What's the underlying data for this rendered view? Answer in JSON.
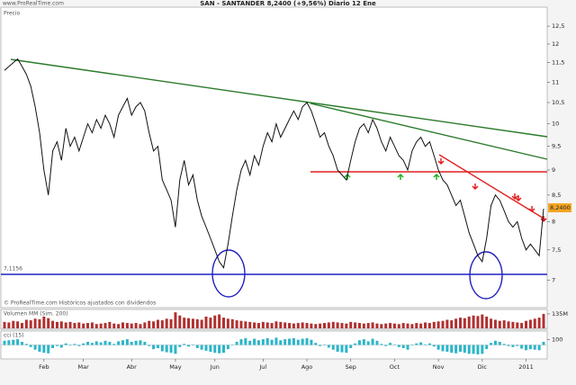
{
  "chart_data": [
    {
      "type": "line",
      "title": "SAN - SANTANDER   8,2400 (+9,56%)   Diario   12 Ene",
      "site": "www.ProRealTime.com",
      "panel_label": "Precio",
      "note": "© ProRealTime.com   Históricos ajustados con dividendos",
      "level_label": "7,1156",
      "last_label": "8,2400",
      "log_scale": true,
      "color": "#111111",
      "categories": [
        null,
        null,
        null,
        null,
        null,
        null,
        null,
        null,
        null,
        "Feb",
        null,
        null,
        null,
        null,
        null,
        null,
        null,
        null,
        "Mar",
        null,
        null,
        null,
        null,
        null,
        null,
        null,
        null,
        null,
        null,
        "Abr",
        null,
        null,
        null,
        null,
        null,
        null,
        null,
        null,
        null,
        "May",
        null,
        null,
        null,
        null,
        null,
        null,
        null,
        null,
        "Jun",
        null,
        null,
        null,
        null,
        null,
        null,
        null,
        null,
        null,
        null,
        "Jul",
        null,
        null,
        null,
        null,
        null,
        null,
        null,
        null,
        null,
        "Ago",
        null,
        null,
        null,
        null,
        null,
        null,
        null,
        null,
        null,
        "Sep",
        null,
        null,
        null,
        null,
        null,
        null,
        null,
        null,
        null,
        "Oct",
        null,
        null,
        null,
        null,
        null,
        null,
        null,
        null,
        null,
        "Nov",
        null,
        null,
        null,
        null,
        null,
        null,
        null,
        null,
        null,
        "Dic",
        null,
        null,
        null,
        null,
        null,
        null,
        null,
        null,
        null,
        "2011",
        null,
        null,
        null,
        null
      ],
      "values": [
        11.3,
        11.4,
        11.5,
        11.6,
        11.4,
        11.2,
        10.9,
        10.4,
        9.8,
        9.0,
        8.5,
        9.4,
        9.6,
        9.2,
        9.9,
        9.5,
        9.7,
        9.4,
        9.7,
        10.0,
        9.8,
        10.1,
        9.9,
        10.2,
        10.0,
        9.7,
        10.2,
        10.4,
        10.6,
        10.2,
        10.4,
        10.5,
        10.3,
        9.8,
        9.4,
        9.5,
        8.8,
        8.6,
        8.4,
        7.9,
        8.8,
        9.2,
        8.7,
        8.9,
        8.4,
        8.1,
        7.9,
        7.7,
        7.5,
        7.3,
        7.2,
        7.6,
        8.1,
        8.6,
        9.0,
        9.2,
        8.9,
        9.3,
        9.1,
        9.5,
        9.8,
        9.6,
        10.0,
        9.7,
        9.9,
        10.1,
        10.3,
        10.1,
        10.4,
        10.5,
        10.3,
        10.0,
        9.7,
        9.8,
        9.5,
        9.3,
        9.0,
        8.9,
        8.8,
        9.2,
        9.6,
        9.9,
        10.0,
        9.8,
        10.1,
        9.9,
        9.6,
        9.4,
        9.7,
        9.5,
        9.3,
        9.2,
        9.0,
        9.4,
        9.6,
        9.7,
        9.5,
        9.6,
        9.3,
        9.0,
        8.8,
        8.7,
        8.5,
        8.3,
        8.4,
        8.1,
        7.8,
        7.6,
        7.4,
        7.3,
        7.7,
        8.3,
        8.5,
        8.4,
        8.2,
        8.0,
        7.9,
        8.0,
        7.7,
        7.5,
        7.6,
        7.5,
        7.4,
        8.24
      ],
      "ylim": [
        6.6,
        13.0
      ],
      "yticks": [
        7,
        {
          "value": 7.5,
          "label": "7,5"
        },
        8,
        {
          "value": 8.5,
          "label": "8,5"
        },
        9,
        {
          "value": 9.5,
          "label": "9,5"
        },
        10,
        {
          "value": 10.5,
          "label": "10,5"
        },
        11,
        {
          "value": 11.5,
          "label": "11,5"
        },
        12,
        {
          "value": 12.5,
          "label": "12,5"
        }
      ]
    },
    {
      "type": "bar",
      "title": "Volumen MM (Sim. 200)",
      "color": "#b03030",
      "values": [
        60,
        55,
        70,
        65,
        50,
        80,
        75,
        90,
        85,
        110,
        95,
        70,
        60,
        65,
        55,
        60,
        50,
        55,
        45,
        50,
        55,
        40,
        45,
        50,
        60,
        45,
        40,
        55,
        50,
        45,
        50,
        40,
        55,
        70,
        65,
        80,
        75,
        90,
        85,
        150,
        120,
        100,
        95,
        90,
        85,
        80,
        110,
        100,
        120,
        130,
        100,
        90,
        85,
        75,
        70,
        65,
        60,
        55,
        50,
        60,
        55,
        50,
        65,
        60,
        55,
        50,
        45,
        50,
        55,
        50,
        45,
        40,
        45,
        50,
        55,
        60,
        55,
        50,
        45,
        60,
        55,
        50,
        45,
        50,
        55,
        45,
        40,
        45,
        50,
        45,
        40,
        50,
        45,
        40,
        50,
        45,
        55,
        50,
        60,
        65,
        70,
        80,
        75,
        90,
        100,
        95,
        110,
        120,
        115,
        130,
        110,
        90,
        80,
        70,
        75,
        65,
        60,
        55,
        50,
        70,
        80,
        90,
        100,
        135
      ],
      "ylim": [
        0,
        160
      ],
      "yticks": [
        {
          "value": 135,
          "label": "135M"
        }
      ]
    },
    {
      "type": "bar",
      "title": "cci (15)",
      "color": "#2bb5c8",
      "values": [
        80,
        90,
        100,
        110,
        60,
        20,
        -40,
        -90,
        -130,
        -150,
        -160,
        -60,
        -20,
        -50,
        30,
        -10,
        20,
        -20,
        30,
        60,
        40,
        70,
        50,
        80,
        60,
        20,
        70,
        90,
        110,
        60,
        80,
        90,
        60,
        -20,
        -80,
        -60,
        -120,
        -140,
        -150,
        -170,
        -40,
        20,
        -30,
        -10,
        -60,
        -90,
        -110,
        -130,
        -150,
        -160,
        -150,
        -80,
        0,
        60,
        110,
        130,
        80,
        120,
        90,
        110,
        130,
        100,
        140,
        90,
        110,
        120,
        130,
        100,
        120,
        130,
        100,
        40,
        -20,
        0,
        -50,
        -90,
        -130,
        -140,
        -150,
        -60,
        30,
        90,
        110,
        70,
        120,
        80,
        20,
        -20,
        40,
        0,
        -40,
        -60,
        -90,
        -10,
        30,
        50,
        10,
        30,
        -30,
        -90,
        -120,
        -130,
        -150,
        -160,
        -130,
        -150,
        -170,
        -170,
        -180,
        -170,
        -80,
        40,
        80,
        60,
        20,
        -20,
        -40,
        -20,
        -70,
        -100,
        -80,
        -90,
        -100,
        60
      ],
      "ylim": [
        -250,
        250
      ],
      "yticks": [
        100
      ]
    }
  ]
}
